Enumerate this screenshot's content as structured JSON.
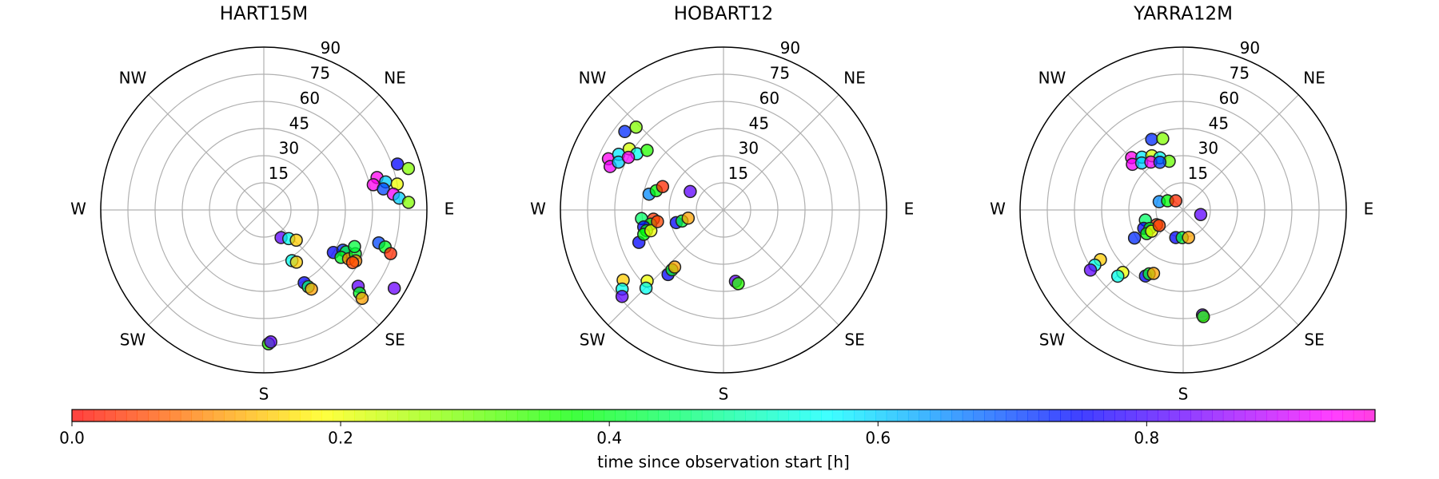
{
  "chart_data": [
    {
      "type": "polar-scatter",
      "title": "HART15M",
      "rlim": [
        0,
        90
      ],
      "rticks": [
        15,
        30,
        45,
        60,
        75,
        90
      ],
      "theta_labels": [
        {
          "value": 45,
          "label": "NE"
        },
        {
          "value": 90,
          "label": "E"
        },
        {
          "value": 135,
          "label": "SE"
        },
        {
          "value": 180,
          "label": "S"
        },
        {
          "value": 225,
          "label": "SW"
        },
        {
          "value": 270,
          "label": "W"
        },
        {
          "value": 315,
          "label": "NW"
        }
      ],
      "theta": [
        71,
        74,
        74,
        77,
        77,
        80,
        79,
        83,
        85,
        87,
        121.5,
        117,
        117,
        121.6,
        120,
        115.6,
        119,
        120.7,
        112,
        106,
        107,
        109,
        148,
        139,
        133,
        151,
        148,
        151,
        150,
        149,
        129,
        131,
        132,
        121,
        178,
        177
      ],
      "r": [
        78,
        83,
        65,
        62,
        69,
        67,
        75,
        72,
        75,
        80,
        45,
        49,
        51,
        50,
        54,
        56,
        58,
        57,
        54,
        66,
        70,
        74,
        18,
        21,
        24.5,
        32,
        34,
        46,
        49,
        51,
        67,
        70,
        73,
        84,
        74,
        73
      ],
      "c": [
        0.75,
        0.28,
        0.95,
        0.95,
        0.6,
        0.7,
        0.2,
        0.93,
        0.6,
        0.28,
        0.75,
        0.72,
        0.42,
        0.4,
        0.1,
        0.4,
        0.1,
        0.05,
        0.42,
        0.7,
        0.4,
        0.03,
        0.82,
        0.55,
        0.15,
        0.55,
        0.15,
        0.75,
        0.45,
        0.12,
        0.82,
        0.4,
        0.12,
        0.83,
        0.35,
        0.82
      ]
    },
    {
      "type": "polar-scatter",
      "title": "HOBART12",
      "rlim": [
        0,
        90
      ],
      "rticks": [
        15,
        30,
        45,
        60,
        75,
        90
      ],
      "theta_labels": [
        {
          "value": 45,
          "label": "NE"
        },
        {
          "value": 90,
          "label": "E"
        },
        {
          "value": 135,
          "label": "SE"
        },
        {
          "value": 180,
          "label": "S"
        },
        {
          "value": 225,
          "label": "SW"
        },
        {
          "value": 270,
          "label": "W"
        },
        {
          "value": 315,
          "label": "NW"
        }
      ],
      "theta": [
        308.5,
        313.5,
        294,
        298,
        303,
        303,
        308,
        291,
        294.5,
        299,
        282,
        286,
        291,
        299,
        264,
        262.5,
        259,
        258,
        255,
        249,
        253,
        254,
        260,
        255,
        255,
        257,
        235,
        232,
        229.5,
        227,
        224.7,
        220.6,
        220.7,
        220.5,
        170.5,
        168.7
      ],
      "r": [
        69.6,
        66.5,
        69.5,
        65.5,
        62,
        57,
        53.5,
        67,
        63.7,
        60,
        42,
        38.6,
        36,
        21,
        45.5,
        39,
        41,
        45,
        44,
        50,
        46,
        41.7,
        37,
        27,
        23.7,
        20,
        67.6,
        71,
        73.6,
        57.6,
        60.8,
        47,
        43.6,
        41.5,
        40,
        41.5
      ],
      "c": [
        0.72,
        0.28,
        0.95,
        0.58,
        0.22,
        0.55,
        0.35,
        0.93,
        0.6,
        0.93,
        0.65,
        0.38,
        0.03,
        0.82,
        0.45,
        0.04,
        0.4,
        0.75,
        0.4,
        0.75,
        0.38,
        0.2,
        0.05,
        0.75,
        0.42,
        0.12,
        0.15,
        0.55,
        0.82,
        0.2,
        0.55,
        0.75,
        0.4,
        0.12,
        0.82,
        0.35
      ]
    },
    {
      "type": "polar-scatter",
      "title": "YARRA12M",
      "rlim": [
        0,
        90
      ],
      "rticks": [
        15,
        30,
        45,
        60,
        75,
        90
      ],
      "theta_labels": [
        {
          "value": 45,
          "label": "NE"
        },
        {
          "value": 90,
          "label": "E"
        },
        {
          "value": 135,
          "label": "SE"
        },
        {
          "value": 180,
          "label": "S"
        },
        {
          "value": 225,
          "label": "SW"
        },
        {
          "value": 270,
          "label": "W"
        },
        {
          "value": 315,
          "label": "NW"
        }
      ],
      "theta": [
        336,
        344,
        315.5,
        322,
        330,
        336,
        344,
        312,
        318.6,
        326,
        334,
        289,
        300.5,
        321,
        104.7,
        255,
        241,
        245,
        241,
        240,
        237,
        236,
        237,
        195,
        182,
        169,
        239,
        238,
        237,
        224,
        224.6,
        209.7,
        208,
        205,
        169.6,
        169.3
      ],
      "r": [
        42.7,
        41,
        40.6,
        37,
        34.6,
        31.6,
        28,
        37.7,
        34.6,
        31.9,
        29.3,
        14,
        10,
        6.5,
        10,
        21.6,
        16.8,
        24,
        21,
        31,
        24,
        21,
        15.8,
        15.8,
        15.3,
        15.5,
        53.3,
        57.5,
        61,
        48,
        51.4,
        42,
        40,
        38.7,
        59,
        60
      ],
      "c": [
        0.72,
        0.28,
        0.95,
        0.58,
        0.22,
        0.55,
        0.3,
        0.93,
        0.6,
        0.93,
        0.7,
        0.65,
        0.38,
        0.03,
        0.82,
        0.45,
        0.04,
        0.75,
        0.4,
        0.72,
        0.38,
        0.2,
        0.05,
        0.75,
        0.42,
        0.12,
        0.15,
        0.55,
        0.82,
        0.2,
        0.55,
        0.75,
        0.4,
        0.12,
        0.82,
        0.35
      ]
    },
    {
      "type": "colorbar",
      "colormap": "hsv",
      "label": "time since observation start [h]",
      "clim": [
        0,
        0.97
      ],
      "ticks": [
        {
          "value": 0,
          "label": "0.0"
        },
        0.2,
        0.4,
        0.6,
        0.8
      ]
    }
  ]
}
